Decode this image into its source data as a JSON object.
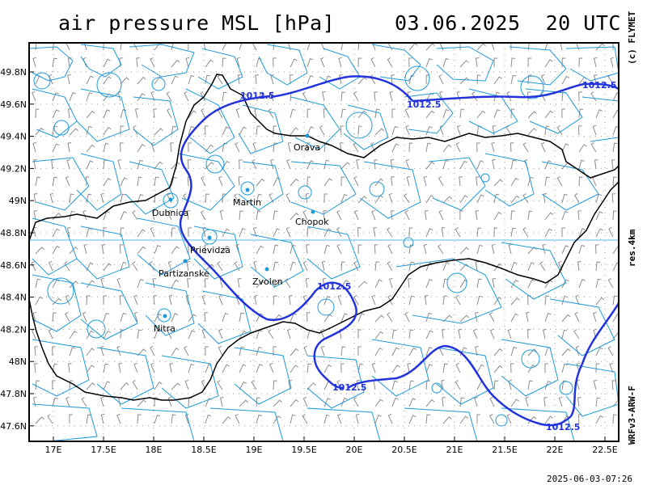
{
  "header": {
    "title": "air pressure MSL [hPa]",
    "datetime": "03.06.2025  20 UTC"
  },
  "side_labels": {
    "copyright": "(c) FLYMET",
    "resolution": "res.4km",
    "model": "WRFv3-ARW-F"
  },
  "footer": {
    "timestamp": "2025-06-03-07:26"
  },
  "colors": {
    "isobar": "#2233dd",
    "topo_contour": "#1e9ad8",
    "border": "#000000",
    "wind_barb": "#8c8c8c",
    "grid": "#9a9a9a"
  },
  "axes": {
    "x_ticks": [
      "17E",
      "17.5E",
      "18E",
      "18.5E",
      "19E",
      "19.5E",
      "20E",
      "20.5E",
      "21E",
      "21.5E",
      "22E",
      "22.5E"
    ],
    "y_ticks": [
      "49.8N",
      "49.6N",
      "49.4N",
      "49.2N",
      "49N",
      "48.8N",
      "48.6N",
      "48.4N",
      "48.2N",
      "48N",
      "47.8N",
      "47.6N"
    ]
  },
  "cities": [
    {
      "name": "Orava",
      "icon": "city-dot"
    },
    {
      "name": "Dubnica",
      "icon": "city-dot"
    },
    {
      "name": "Martin",
      "icon": "city-dot"
    },
    {
      "name": "Chopok",
      "icon": "city-dot"
    },
    {
      "name": "Prievidza",
      "icon": "city-dot"
    },
    {
      "name": "Partizanske",
      "icon": "city-dot"
    },
    {
      "name": "Zvolen",
      "icon": "city-dot"
    },
    {
      "name": "Nitra",
      "icon": "city-dot"
    }
  ],
  "isobar_labels": [
    "1012.5",
    "1012.5",
    "1012.5",
    "1012.5",
    "1012.5",
    "1012.5"
  ]
}
